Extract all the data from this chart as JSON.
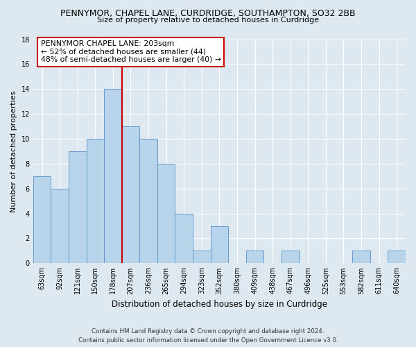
{
  "title": "PENNYMOR, CHAPEL LANE, CURDRIDGE, SOUTHAMPTON, SO32 2BB",
  "subtitle": "Size of property relative to detached houses in Curdridge",
  "xlabel": "Distribution of detached houses by size in Curdridge",
  "ylabel": "Number of detached properties",
  "bin_labels": [
    "63sqm",
    "92sqm",
    "121sqm",
    "150sqm",
    "178sqm",
    "207sqm",
    "236sqm",
    "265sqm",
    "294sqm",
    "323sqm",
    "352sqm",
    "380sqm",
    "409sqm",
    "438sqm",
    "467sqm",
    "496sqm",
    "525sqm",
    "553sqm",
    "582sqm",
    "611sqm",
    "640sqm"
  ],
  "bar_values": [
    7,
    6,
    9,
    10,
    14,
    11,
    10,
    8,
    4,
    1,
    3,
    0,
    1,
    0,
    1,
    0,
    0,
    0,
    1,
    0,
    1
  ],
  "bar_color": "#b8d4ea",
  "bar_edge_color": "#6699cc",
  "highlight_line_color": "#cc0000",
  "annotation_line1": "PENNYMOR CHAPEL LANE: 203sqm",
  "annotation_line2": "← 52% of detached houses are smaller (44)",
  "annotation_line3": "48% of semi-detached houses are larger (40) →",
  "ylim": [
    0,
    18
  ],
  "yticks": [
    0,
    2,
    4,
    6,
    8,
    10,
    12,
    14,
    16,
    18
  ],
  "footer_line1": "Contains HM Land Registry data © Crown copyright and database right 2024.",
  "footer_line2": "Contains public sector information licensed under the Open Government Licence v3.0.",
  "bg_color": "#dde8f0",
  "plot_bg_color": "#dde8f0",
  "grid_color": "#ffffff"
}
